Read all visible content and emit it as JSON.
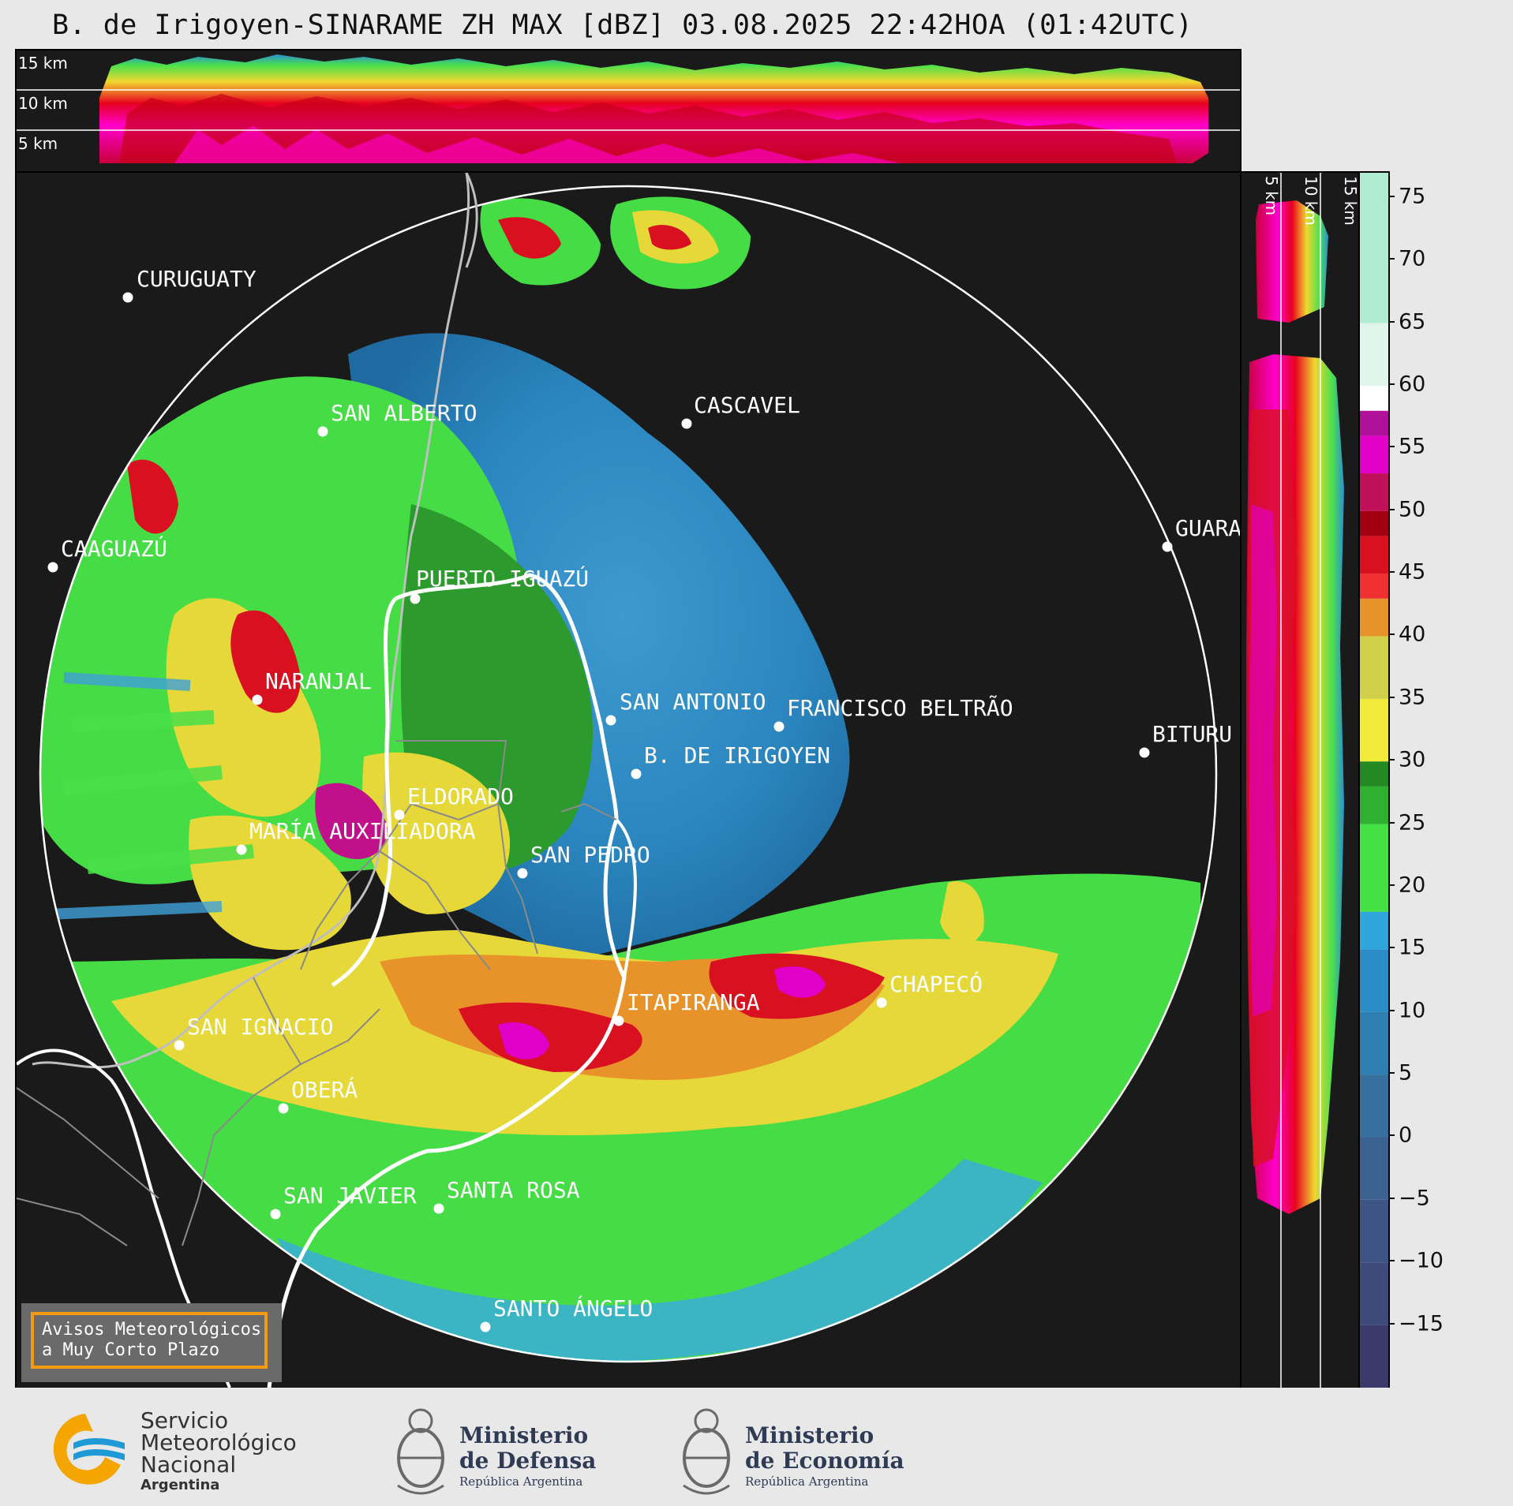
{
  "header": {
    "title": "B. de Irigoyen-SINARAME ZH MAX [dBZ] 03.08.2025 22:42HOA (01:42UTC)"
  },
  "top_panel": {
    "km_labels": [
      "15 km",
      "10 km",
      "5 km"
    ]
  },
  "side_panel": {
    "km_labels": [
      "5 km",
      "10 km",
      "15 km"
    ]
  },
  "colorbar": {
    "ticks": [
      "75",
      "70",
      "65",
      "60",
      "55",
      "50",
      "45",
      "40",
      "35",
      "30",
      "25",
      "20",
      "15",
      "10",
      "5",
      "0",
      "−5",
      "−10",
      "−15"
    ],
    "tick_values": [
      75,
      70,
      65,
      60,
      55,
      50,
      45,
      40,
      35,
      30,
      25,
      20,
      15,
      10,
      5,
      0,
      -5,
      -10,
      -15
    ],
    "range": [
      -20,
      77
    ],
    "unit": "dBZ"
  },
  "cities": [
    {
      "name": "CURUGUATY"
    },
    {
      "name": "SAN ALBERTO"
    },
    {
      "name": "CASCAVEL"
    },
    {
      "name": "CAAGUAZÚ"
    },
    {
      "name": "GUARA"
    },
    {
      "name": "PUERTO IGUAZÚ"
    },
    {
      "name": "NARANJAL"
    },
    {
      "name": "SAN ANTONIO"
    },
    {
      "name": "FRANCISCO BELTRÃO"
    },
    {
      "name": "BITURU"
    },
    {
      "name": "B. DE IRIGOYEN"
    },
    {
      "name": "ELDORADO"
    },
    {
      "name": "MARÍA AUXILIADORA"
    },
    {
      "name": "SAN PEDRO"
    },
    {
      "name": "CHAPECÓ"
    },
    {
      "name": "ITAPIRANGA"
    },
    {
      "name": "SAN IGNACIO"
    },
    {
      "name": "OBERÁ"
    },
    {
      "name": "SAN JAVIER"
    },
    {
      "name": "SANTA ROSA"
    },
    {
      "name": "SANTO ÁNGELO"
    }
  ],
  "warning": {
    "line1": "Avisos Meteorológicos",
    "line2": "a Muy Corto Plazo"
  },
  "footer": {
    "smn_line1": "Servicio",
    "smn_line2": "Meteorológico",
    "smn_line3": "Nacional",
    "smn_line4": "Argentina",
    "defensa_line1": "Ministerio",
    "defensa_line2": "de Defensa",
    "defensa_line3": "República Argentina",
    "economia_line1": "Ministerio",
    "economia_line2": "de Economía",
    "economia_line3": "República Argentina"
  },
  "colors": {
    "background": "#1a1a1a",
    "page": "#e8e8e8",
    "warning_border": "#f39c12",
    "smn_blue": "#1e9ad6",
    "smn_orange": "#f5a500"
  }
}
